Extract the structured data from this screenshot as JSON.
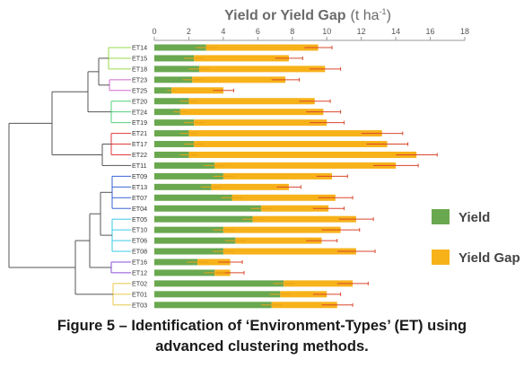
{
  "caption": {
    "line1": "Figure 5 – Identification of ‘Environment-Types’ (ET) using",
    "line2": "advanced clustering methods."
  },
  "chart_data": {
    "type": "bar",
    "orientation": "horizontal",
    "stacked": true,
    "title": "Yield or Yield Gap",
    "unit_label": "(t ha",
    "unit_exp": "-1",
    "unit_close": ")",
    "xlim": [
      0,
      18
    ],
    "xticks": [
      0,
      2,
      4,
      6,
      8,
      10,
      12,
      14,
      16,
      18
    ],
    "grid": false,
    "legend_placement": "right",
    "colors": {
      "yield": "#6aa84f",
      "gap": "#f7b21a",
      "error": "#d9472b",
      "dendro": "#555555"
    },
    "categories": [
      "ET14",
      "ET15",
      "ET18",
      "ET23",
      "ET25",
      "ET20",
      "ET24",
      "ET19",
      "ET21",
      "ET17",
      "ET22",
      "ET11",
      "ET09",
      "ET13",
      "ET07",
      "ET04",
      "ET05",
      "ET10",
      "ET06",
      "ET08",
      "ET16",
      "ET12",
      "ET02",
      "ET01",
      "ET03"
    ],
    "cluster_colors": [
      "#9ad94a",
      "#9ad94a",
      "#9ad94a",
      "#cf6ad0",
      "#cf6ad0",
      "#52d07b",
      "#52d07b",
      "#52d07b",
      "#e23a3a",
      "#e23a3a",
      "#e23a3a",
      "#555555",
      "#3a63d6",
      "#3a63d6",
      "#3a63d6",
      "#3a63d6",
      "#3ec9e6",
      "#3ec9e6",
      "#3ec9e6",
      "#3ec9e6",
      "#8a4fd6",
      "#8a4fd6",
      "#e8c84a",
      "#e8c84a",
      "#e8c84a"
    ],
    "series": [
      {
        "name": "Yield",
        "values": [
          3.0,
          2.3,
          2.6,
          2.2,
          1.0,
          2.0,
          1.5,
          2.3,
          2.0,
          2.3,
          2.0,
          3.5,
          4.0,
          3.3,
          4.5,
          6.2,
          5.7,
          4.0,
          4.7,
          4.0,
          2.5,
          3.5,
          7.5,
          7.3,
          6.8
        ]
      },
      {
        "name": "Yield Gap",
        "values": [
          6.5,
          5.5,
          7.3,
          5.4,
          3.0,
          7.3,
          8.3,
          7.7,
          11.2,
          11.2,
          13.2,
          10.5,
          6.3,
          4.5,
          6.0,
          3.9,
          6.0,
          6.8,
          5.0,
          7.7,
          1.9,
          0.9,
          4.0,
          2.7,
          3.8
        ]
      }
    ],
    "error_halfwidth": [
      0.8,
      0.8,
      0.9,
      0.8,
      0.6,
      0.9,
      1.0,
      1.0,
      1.2,
      1.2,
      1.2,
      1.3,
      0.9,
      0.7,
      1.0,
      0.9,
      1.0,
      1.1,
      0.9,
      1.1,
      0.7,
      0.8,
      0.9,
      0.8,
      0.9
    ]
  }
}
